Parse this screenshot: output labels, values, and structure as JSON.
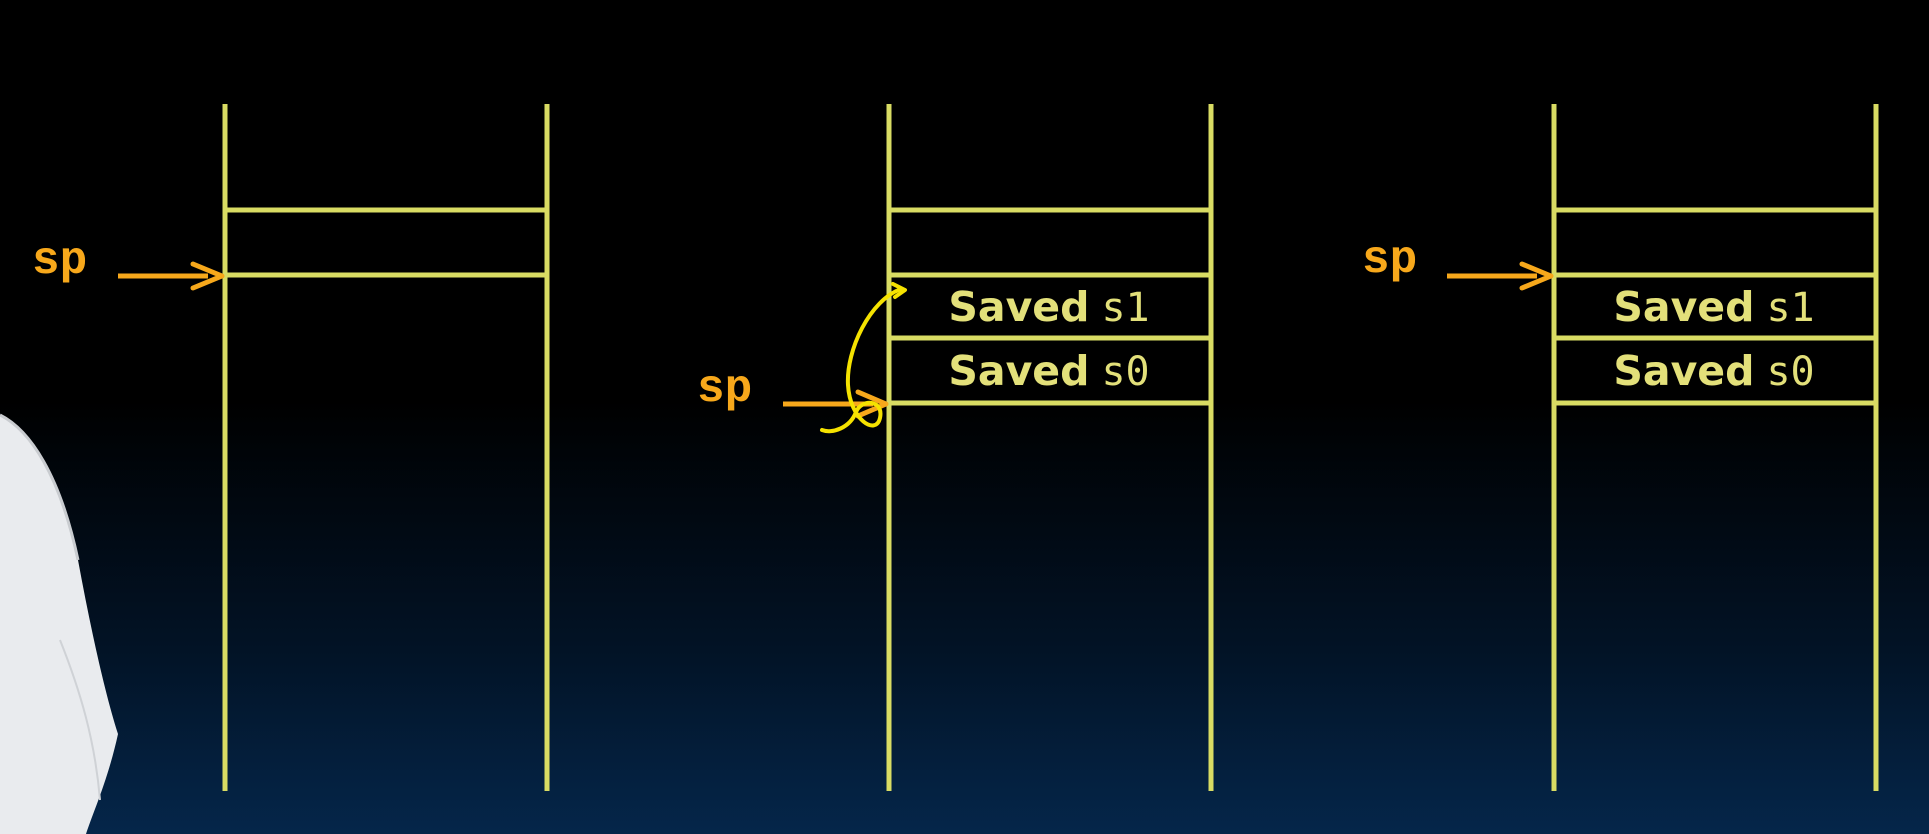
{
  "colors": {
    "stack_lines": "#d9dc63",
    "slot_text": "#e3e07a",
    "sp_pointer": "#f7a81b",
    "annotation": "#f5e200",
    "person_shirt": "#e9ebee"
  },
  "stacks": [
    {
      "name": "before",
      "pointer_label": "sp",
      "slots": []
    },
    {
      "name": "during",
      "pointer_label": "sp",
      "slots": [
        {
          "word": "Saved",
          "register": "s1"
        },
        {
          "word": "Saved",
          "register": "s0"
        }
      ],
      "annotation": "curved-arrow-icon"
    },
    {
      "name": "after",
      "pointer_label": "sp",
      "slots": [
        {
          "word": "Saved",
          "register": "s1"
        },
        {
          "word": "Saved",
          "register": "s0"
        }
      ]
    }
  ],
  "presenter": "person-shoulder"
}
